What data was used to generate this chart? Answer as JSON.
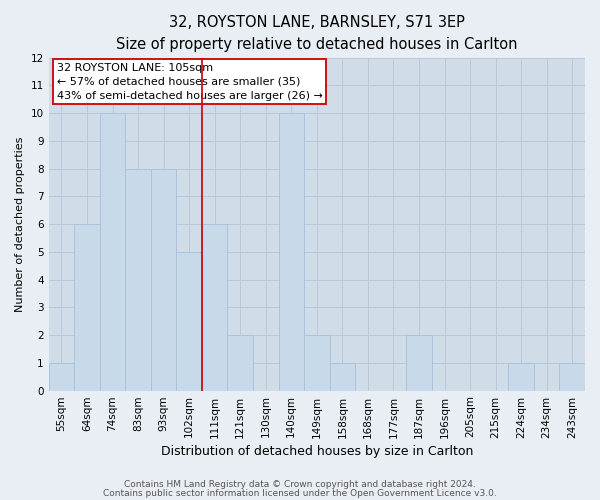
{
  "title_line1": "32, ROYSTON LANE, BARNSLEY, S71 3EP",
  "title_line2": "Size of property relative to detached houses in Carlton",
  "xlabel": "Distribution of detached houses by size in Carlton",
  "ylabel": "Number of detached properties",
  "bin_labels": [
    "55sqm",
    "64sqm",
    "74sqm",
    "83sqm",
    "93sqm",
    "102sqm",
    "111sqm",
    "121sqm",
    "130sqm",
    "140sqm",
    "149sqm",
    "158sqm",
    "168sqm",
    "177sqm",
    "187sqm",
    "196sqm",
    "205sqm",
    "215sqm",
    "224sqm",
    "234sqm",
    "243sqm"
  ],
  "bar_values": [
    1,
    6,
    10,
    8,
    8,
    5,
    6,
    2,
    0,
    10,
    2,
    1,
    0,
    0,
    2,
    0,
    0,
    0,
    1,
    0,
    1
  ],
  "bar_color": "#c8daea",
  "bar_edge_color": "#a8c4dc",
  "highlight_bar_index": 5,
  "red_line_x": 5,
  "ylim": [
    0,
    12
  ],
  "yticks": [
    0,
    1,
    2,
    3,
    4,
    5,
    6,
    7,
    8,
    9,
    10,
    11,
    12
  ],
  "annotation_line1": "32 ROYSTON LANE: 105sqm",
  "annotation_line2": "← 57% of detached houses are smaller (35)",
  "annotation_line3": "43% of semi-detached houses are larger (26) →",
  "footer_line1": "Contains HM Land Registry data © Crown copyright and database right 2024.",
  "footer_line2": "Contains public sector information licensed under the Open Government Licence v3.0.",
  "figure_bg_color": "#e8eef4",
  "plot_bg_color": "#d0dce8",
  "grid_color": "#b8c8d8",
  "title1_fontsize": 10.5,
  "title2_fontsize": 9,
  "annotation_fontsize": 8,
  "xlabel_fontsize": 9,
  "ylabel_fontsize": 8,
  "tick_fontsize": 7.5,
  "footer_fontsize": 6.5,
  "red_color": "#cc0000"
}
